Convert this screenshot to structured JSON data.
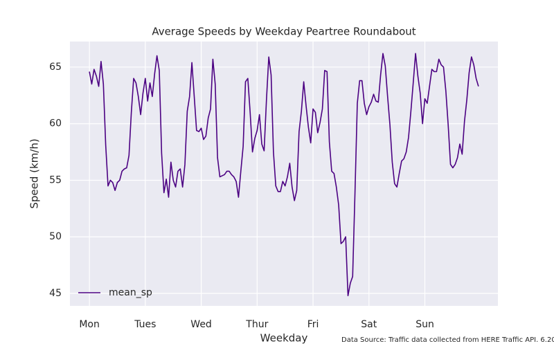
{
  "chart_data": {
    "type": "line",
    "title": "Average Speeds by Weekday Peartree Roundabout",
    "x_label": "Weekday",
    "y_label": "Speed (km/h)",
    "footnote": "Data Source: Traffic data collected from HERE Traffic API. 6.20",
    "x": [
      0,
      1,
      2,
      3,
      4,
      5,
      6,
      7,
      8,
      9,
      10,
      11,
      12,
      13,
      14,
      15,
      16,
      17,
      18,
      19,
      20,
      21,
      22,
      23,
      24,
      25,
      26,
      27,
      28,
      29,
      30,
      31,
      32,
      33,
      34,
      35,
      36,
      37,
      38,
      39,
      40,
      41,
      42,
      43,
      44,
      45,
      46,
      47,
      48,
      49,
      50,
      51,
      52,
      53,
      54,
      55,
      56,
      57,
      58,
      59,
      60,
      61,
      62,
      63,
      64,
      65,
      66,
      67,
      68,
      69,
      70,
      71,
      72,
      73,
      74,
      75,
      76,
      77,
      78,
      79,
      80,
      81,
      82,
      83,
      84,
      85,
      86,
      87,
      88,
      89,
      90,
      91,
      92,
      93,
      94,
      95,
      96,
      97,
      98,
      99,
      100,
      101,
      102,
      103,
      104,
      105,
      106,
      107,
      108,
      109,
      110,
      111,
      112,
      113,
      114,
      115,
      116,
      117,
      118,
      119,
      120,
      121,
      122,
      123,
      124,
      125,
      126,
      127,
      128,
      129,
      130,
      131,
      132,
      133,
      134,
      135,
      136,
      137,
      138,
      139,
      140,
      141,
      142,
      143,
      144,
      145,
      146,
      147,
      148,
      149,
      150,
      151,
      152,
      153,
      154,
      155,
      156,
      157,
      158,
      159,
      160,
      161,
      162,
      163,
      164,
      165,
      166,
      167
    ],
    "series": [
      {
        "name": "mean_sp",
        "color": "#4b0082",
        "values": [
          64.6,
          63.5,
          64.8,
          64.2,
          63.3,
          65.5,
          63.5,
          58.1,
          54.5,
          55.0,
          54.8,
          54.1,
          54.8,
          55.0,
          55.8,
          56.0,
          56.1,
          57.2,
          61.0,
          64.0,
          63.6,
          62.4,
          60.8,
          62.7,
          64.0,
          62.0,
          63.6,
          62.4,
          64.4,
          66.0,
          64.7,
          57.4,
          53.9,
          55.1,
          53.5,
          56.6,
          55.0,
          54.4,
          55.8,
          56.0,
          54.4,
          56.4,
          61.1,
          62.4,
          65.4,
          62.4,
          59.4,
          59.3,
          59.6,
          58.6,
          58.9,
          60.5,
          61.3,
          65.7,
          63.5,
          57.0,
          55.3,
          55.4,
          55.5,
          55.8,
          55.8,
          55.5,
          55.3,
          54.9,
          53.5,
          55.8,
          58.0,
          63.7,
          64.0,
          61.0,
          57.5,
          58.7,
          59.4,
          60.8,
          58.2,
          57.6,
          62.1,
          65.9,
          64.3,
          57.5,
          54.5,
          54.0,
          54.0,
          54.9,
          54.5,
          55.3,
          56.5,
          54.4,
          53.2,
          54.1,
          59.3,
          61.1,
          63.7,
          61.6,
          59.7,
          58.3,
          61.3,
          61.0,
          59.2,
          60.1,
          61.3,
          64.7,
          64.6,
          58.4,
          55.8,
          55.6,
          54.4,
          52.8,
          49.4,
          49.6,
          50.0,
          44.8,
          45.9,
          46.5,
          53.9,
          61.8,
          63.8,
          63.8,
          61.8,
          60.8,
          61.5,
          61.9,
          62.6,
          62.0,
          61.9,
          64.3,
          66.2,
          65.1,
          62.4,
          59.9,
          56.6,
          54.7,
          54.4,
          55.6,
          56.7,
          56.9,
          57.5,
          58.8,
          61.1,
          63.6,
          66.2,
          64.2,
          62.7,
          60.0,
          62.2,
          61.8,
          63.3,
          64.8,
          64.6,
          64.6,
          65.7,
          65.2,
          65.0,
          62.9,
          59.9,
          56.4,
          56.1,
          56.4,
          57.0,
          58.2,
          57.3,
          60.2,
          62.1,
          64.5,
          65.9,
          65.2,
          64.0,
          63.3
        ]
      }
    ],
    "xlim": [
      -8.35,
      175.35
    ],
    "ylim": [
      43.9,
      67.26
    ],
    "xticks": [
      {
        "value": 0,
        "label": "Mon"
      },
      {
        "value": 24,
        "label": "Tues"
      },
      {
        "value": 48,
        "label": "Wed"
      },
      {
        "value": 72,
        "label": "Thur"
      },
      {
        "value": 96,
        "label": "Fri"
      },
      {
        "value": 120,
        "label": "Sat"
      },
      {
        "value": 144,
        "label": "Sun"
      }
    ],
    "yticks": [
      45,
      50,
      55,
      60,
      65
    ],
    "grid": true,
    "legend": "lower left"
  }
}
